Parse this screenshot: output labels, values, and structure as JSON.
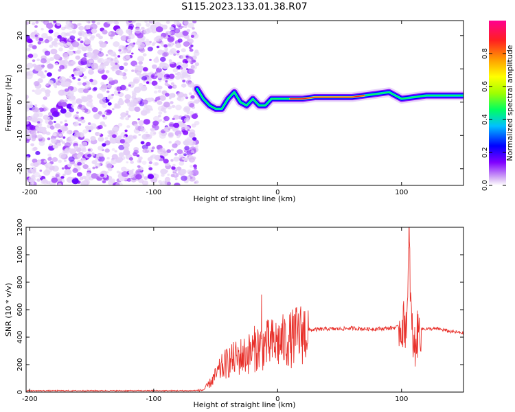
{
  "title": "S115.2023.133.01.38.R07",
  "chart_data": [
    {
      "type": "heatmap",
      "xlabel": "Height of straight line (km)",
      "ylabel": "Frequency (Hz)",
      "xlim": [
        -203,
        150
      ],
      "ylim": [
        -25,
        24.5
      ],
      "xticks": [
        -200,
        -100,
        0,
        100
      ],
      "yticks": [
        -20,
        -10,
        0,
        10,
        20
      ],
      "colorbar": {
        "label": "Normalized spectral amplitude",
        "range": [
          0,
          1
        ],
        "ticks": [
          0.0,
          0.2,
          0.4,
          0.6,
          0.8
        ],
        "colors": [
          "#ffffff",
          "#d9b8f5",
          "#8000ff",
          "#0000ff",
          "#00c0ff",
          "#00ff60",
          "#a0ff00",
          "#ffff00",
          "#ffa000",
          "#ff2020",
          "#ff0090"
        ]
      },
      "noise_region": {
        "x": [
          -203,
          -65
        ],
        "y": [
          -25,
          24.5
        ]
      },
      "ridge": [
        {
          "x": -65,
          "y": 4
        },
        {
          "x": -60,
          "y": 1
        },
        {
          "x": -55,
          "y": -1
        },
        {
          "x": -50,
          "y": -2
        },
        {
          "x": -45,
          "y": -2
        },
        {
          "x": -40,
          "y": 1
        },
        {
          "x": -35,
          "y": 3
        },
        {
          "x": -30,
          "y": 0
        },
        {
          "x": -25,
          "y": -1
        },
        {
          "x": -20,
          "y": 1
        },
        {
          "x": -15,
          "y": -1
        },
        {
          "x": -10,
          "y": -1
        },
        {
          "x": -5,
          "y": 1
        },
        {
          "x": 0,
          "y": 1
        },
        {
          "x": 10,
          "y": 1
        },
        {
          "x": 20,
          "y": 1
        },
        {
          "x": 30,
          "y": 1.5
        },
        {
          "x": 40,
          "y": 1.5
        },
        {
          "x": 50,
          "y": 1.5
        },
        {
          "x": 60,
          "y": 1.5
        },
        {
          "x": 70,
          "y": 2
        },
        {
          "x": 80,
          "y": 2.5
        },
        {
          "x": 90,
          "y": 3
        },
        {
          "x": 95,
          "y": 2
        },
        {
          "x": 100,
          "y": 1
        },
        {
          "x": 110,
          "y": 1.5
        },
        {
          "x": 120,
          "y": 2
        },
        {
          "x": 130,
          "y": 2
        },
        {
          "x": 140,
          "y": 2
        },
        {
          "x": 150,
          "y": 2
        }
      ]
    },
    {
      "type": "line",
      "xlabel": "Height of straight line (km)",
      "ylabel": "SNR (10 * v/v)",
      "xlim": [
        -203,
        150
      ],
      "ylim": [
        0,
        1200
      ],
      "xticks": [
        -200,
        -100,
        0,
        100
      ],
      "yticks": [
        0,
        200,
        400,
        600,
        800,
        1000,
        1200
      ],
      "color": "#e8302a",
      "series": [
        {
          "x": [
            -203,
            -180,
            -160,
            -140,
            -120,
            -100,
            -80,
            -70,
            -60,
            -55,
            -50,
            -45,
            -40,
            -35,
            -30,
            -25,
            -20,
            -18,
            -15,
            -10,
            -5,
            0,
            5,
            10,
            15,
            20,
            25,
            30,
            40,
            50,
            60,
            70,
            80,
            90,
            95,
            100,
            103,
            105,
            106,
            107,
            108,
            110,
            112,
            115,
            120,
            130,
            140,
            150
          ],
          "y": [
            10,
            10,
            10,
            10,
            10,
            10,
            10,
            10,
            15,
            60,
            120,
            180,
            220,
            240,
            260,
            270,
            300,
            320,
            330,
            340,
            350,
            360,
            370,
            380,
            410,
            430,
            450,
            455,
            460,
            460,
            465,
            460,
            460,
            465,
            470,
            480,
            500,
            600,
            1200,
            800,
            500,
            300,
            400,
            460,
            460,
            460,
            440,
            430
          ]
        }
      ],
      "spikes": [
        {
          "x": -13,
          "y": 710
        },
        {
          "x": 106,
          "y": 1200
        }
      ]
    }
  ]
}
